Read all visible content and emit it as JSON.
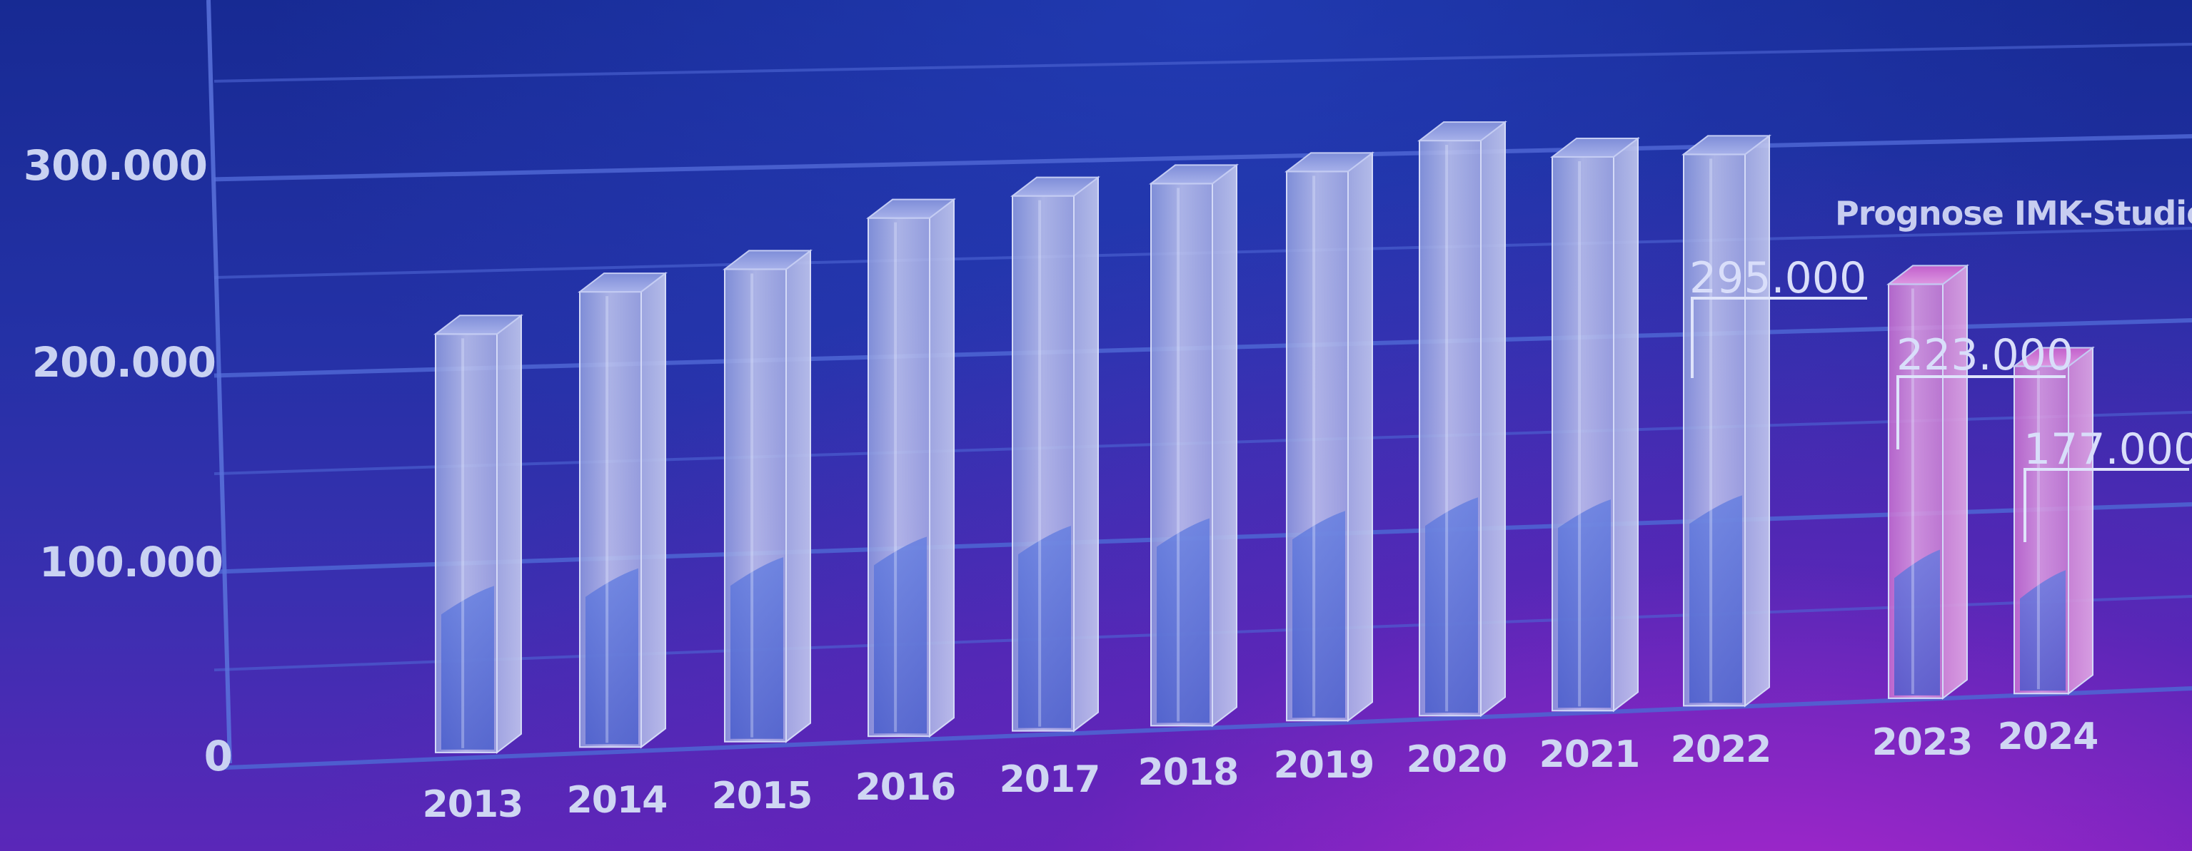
{
  "chart_data": {
    "type": "bar",
    "title": "",
    "xlabel": "",
    "ylabel": "",
    "ylim": [
      0,
      300000
    ],
    "yticks": [
      {
        "value": 0,
        "label": "0"
      },
      {
        "value": 100000,
        "label": "100.000"
      },
      {
        "value": 200000,
        "label": "200.000"
      },
      {
        "value": 300000,
        "label": "300.000"
      }
    ],
    "grid": true,
    "style": "3d-columns",
    "forecast_label": "Prognose IMK-Studie",
    "categories": [
      "2013",
      "2014",
      "2015",
      "2016",
      "2017",
      "2018",
      "2019",
      "2020",
      "2021",
      "2022",
      "2023",
      "2024"
    ],
    "values": [
      215000,
      235000,
      245000,
      270000,
      280000,
      285000,
      290000,
      305000,
      295000,
      295000,
      223000,
      177000
    ],
    "data_labels": {
      "2022": "295.000",
      "2023": "223.000",
      "2024": "177.000"
    },
    "forecast_categories": [
      "2023",
      "2024"
    ],
    "colors": {
      "bar_fill": "#b6bde8",
      "bar_inner": "#4d6ad8",
      "forecast_fill": "#d07fd8",
      "grid": "#4e66d4",
      "label": "#cfd6f3"
    }
  }
}
